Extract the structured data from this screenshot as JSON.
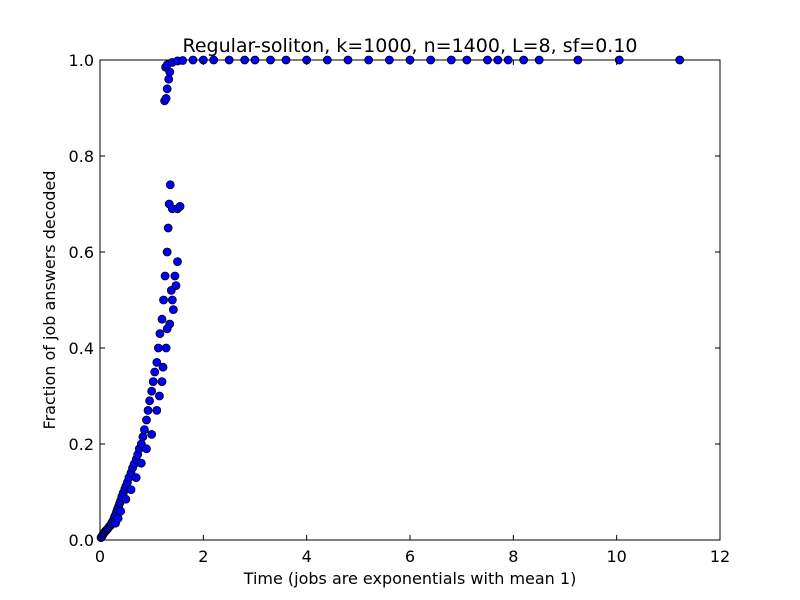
{
  "chart_data": {
    "type": "scatter",
    "title": "Regular-soliton, k=1000, n=1400, L=8, sf=0.10",
    "xlabel": "Time (jobs are exponentials with mean 1)",
    "ylabel": "Fraction of job answers decoded",
    "xlim": [
      0,
      12
    ],
    "ylim": [
      0,
      1.0
    ],
    "x_ticks": [
      0,
      2,
      4,
      6,
      8,
      10,
      12
    ],
    "y_ticks": [
      0.0,
      0.2,
      0.4,
      0.6,
      0.8,
      1.0
    ],
    "x_tick_labels": [
      "0",
      "2",
      "4",
      "6",
      "8",
      "10",
      "12"
    ],
    "y_tick_labels": [
      "0.0",
      "0.2",
      "0.4",
      "0.6",
      "0.8",
      "1.0"
    ],
    "grid": false,
    "legend": "none",
    "marker_color": "#0000ff",
    "marker_edge_color": "#000000",
    "series": [
      {
        "points": [
          [
            0.02,
            0.005
          ],
          [
            0.04,
            0.008
          ],
          [
            0.06,
            0.012
          ],
          [
            0.08,
            0.015
          ],
          [
            0.1,
            0.018
          ],
          [
            0.12,
            0.02
          ],
          [
            0.14,
            0.022
          ],
          [
            0.16,
            0.025
          ],
          [
            0.18,
            0.028
          ],
          [
            0.2,
            0.03
          ],
          [
            0.22,
            0.034
          ],
          [
            0.24,
            0.038
          ],
          [
            0.26,
            0.042
          ],
          [
            0.28,
            0.048
          ],
          [
            0.3,
            0.052
          ],
          [
            0.32,
            0.058
          ],
          [
            0.34,
            0.064
          ],
          [
            0.36,
            0.07
          ],
          [
            0.38,
            0.076
          ],
          [
            0.4,
            0.082
          ],
          [
            0.42,
            0.09
          ],
          [
            0.45,
            0.098
          ],
          [
            0.48,
            0.106
          ],
          [
            0.5,
            0.112
          ],
          [
            0.53,
            0.12
          ],
          [
            0.56,
            0.13
          ],
          [
            0.6,
            0.14
          ],
          [
            0.63,
            0.15
          ],
          [
            0.66,
            0.158
          ],
          [
            0.7,
            0.168
          ],
          [
            0.73,
            0.178
          ],
          [
            0.76,
            0.19
          ],
          [
            0.8,
            0.2
          ],
          [
            0.83,
            0.215
          ],
          [
            0.86,
            0.23
          ],
          [
            0.9,
            0.25
          ],
          [
            0.93,
            0.27
          ],
          [
            0.96,
            0.29
          ],
          [
            1.0,
            0.31
          ],
          [
            1.03,
            0.33
          ],
          [
            1.06,
            0.35
          ],
          [
            1.1,
            0.37
          ],
          [
            1.13,
            0.4
          ],
          [
            1.16,
            0.43
          ],
          [
            1.2,
            0.46
          ],
          [
            1.23,
            0.5
          ],
          [
            1.26,
            0.55
          ],
          [
            1.3,
            0.6
          ],
          [
            1.32,
            0.65
          ],
          [
            1.34,
            0.7
          ],
          [
            1.36,
            0.74
          ],
          [
            1.4,
            0.69
          ],
          [
            1.5,
            0.69
          ],
          [
            1.55,
            0.695
          ],
          [
            0.3,
            0.035
          ],
          [
            0.35,
            0.045
          ],
          [
            0.4,
            0.06
          ],
          [
            0.5,
            0.085
          ],
          [
            0.6,
            0.105
          ],
          [
            0.7,
            0.13
          ],
          [
            0.8,
            0.16
          ],
          [
            0.9,
            0.19
          ],
          [
            1.0,
            0.22
          ],
          [
            1.1,
            0.27
          ],
          [
            1.2,
            0.33
          ],
          [
            1.28,
            0.4
          ],
          [
            1.35,
            0.45
          ],
          [
            1.4,
            0.5
          ],
          [
            1.45,
            0.55
          ],
          [
            1.5,
            0.58
          ],
          [
            1.15,
            0.3
          ],
          [
            1.22,
            0.36
          ],
          [
            1.3,
            0.44
          ],
          [
            1.38,
            0.52
          ],
          [
            1.42,
            0.48
          ],
          [
            1.47,
            0.53
          ],
          [
            1.25,
            0.915
          ],
          [
            1.28,
            0.92
          ],
          [
            1.3,
            0.94
          ],
          [
            1.33,
            0.96
          ],
          [
            1.35,
            0.975
          ],
          [
            1.27,
            0.985
          ],
          [
            1.3,
            0.99
          ],
          [
            1.4,
            0.995
          ],
          [
            1.5,
            0.998
          ],
          [
            1.6,
            0.999
          ],
          [
            1.8,
            1.0
          ],
          [
            2.0,
            1.0
          ],
          [
            2.2,
            1.0
          ],
          [
            2.5,
            1.0
          ],
          [
            2.8,
            1.0
          ],
          [
            3.0,
            1.0
          ],
          [
            3.3,
            1.0
          ],
          [
            3.6,
            1.0
          ],
          [
            4.0,
            1.0
          ],
          [
            4.4,
            1.0
          ],
          [
            4.8,
            1.0
          ],
          [
            5.2,
            1.0
          ],
          [
            5.6,
            1.0
          ],
          [
            6.0,
            1.0
          ],
          [
            6.4,
            1.0
          ],
          [
            6.8,
            1.0
          ],
          [
            7.1,
            1.0
          ],
          [
            7.5,
            1.0
          ],
          [
            7.7,
            1.0
          ],
          [
            7.9,
            1.0
          ],
          [
            8.2,
            1.0
          ],
          [
            8.5,
            1.0
          ],
          [
            9.25,
            1.0
          ],
          [
            10.05,
            1.0
          ],
          [
            11.22,
            1.0
          ]
        ]
      }
    ]
  }
}
